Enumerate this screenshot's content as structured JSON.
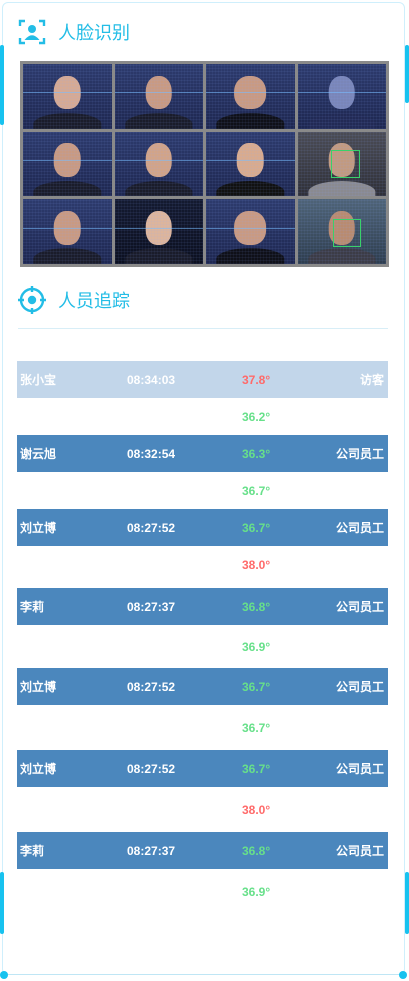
{
  "face": {
    "title": "人脸识别",
    "icon": "face-scan-icon",
    "photos": 12
  },
  "tracking": {
    "title": "人员追踪",
    "icon": "crosshair-target-icon",
    "records": [
      {
        "name": "张小宝",
        "time": "08:34:03",
        "temp": "37.8°",
        "temp_status": "high",
        "type": "访客",
        "sub_temp": "36.2°",
        "sub_status": "normal"
      },
      {
        "name": "谢云旭",
        "time": "08:32:54",
        "temp": "36.3°",
        "temp_status": "normal",
        "type": "公司员工",
        "sub_temp": "36.7°",
        "sub_status": "normal"
      },
      {
        "name": "刘立博",
        "time": "08:27:52",
        "temp": "36.7°",
        "temp_status": "normal",
        "type": "公司员工",
        "sub_temp": "38.0°",
        "sub_status": "high"
      },
      {
        "name": "李莉",
        "time": "08:27:37",
        "temp": "36.8°",
        "temp_status": "normal",
        "type": "公司员工",
        "sub_temp": "36.9°",
        "sub_status": "normal"
      },
      {
        "name": "刘立博",
        "time": "08:27:52",
        "temp": "36.7°",
        "temp_status": "normal",
        "type": "公司员工",
        "sub_temp": "36.7°",
        "sub_status": "normal"
      },
      {
        "name": "刘立博",
        "time": "08:27:52",
        "temp": "36.7°",
        "temp_status": "normal",
        "type": "公司员工",
        "sub_temp": "38.0°",
        "sub_status": "high"
      },
      {
        "name": "李莉",
        "time": "08:27:37",
        "temp": "36.8°",
        "temp_status": "normal",
        "type": "公司员工",
        "sub_temp": "36.9°",
        "sub_status": "normal"
      }
    ]
  },
  "colors": {
    "accent": "#23bde6",
    "row_blue": "#4b87bd",
    "row_light": "#c2d6ea",
    "temp_high": "#ff6a6a",
    "temp_normal": "#67e08a"
  }
}
